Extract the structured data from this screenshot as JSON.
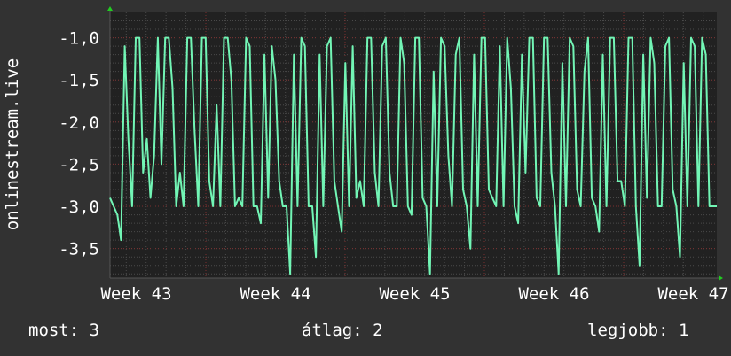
{
  "chart_data": {
    "type": "line",
    "ylabel": "onlinestream.live",
    "xlabel": "",
    "x_tick_labels": [
      "Week 43",
      "Week 44",
      "Week 45",
      "Week 46",
      "Week 47"
    ],
    "y_tick_labels": [
      "-1,0",
      "-1,5",
      "-2,0",
      "-2,5",
      "-3,0",
      "-3,5"
    ],
    "y_ticks": [
      -1.0,
      -1.5,
      -2.0,
      -2.5,
      -3.0,
      -3.5
    ],
    "ylim": [
      -3.85,
      -0.7
    ],
    "grid": true,
    "colors": {
      "line": "#72f5b5",
      "background": "#323232",
      "plot": "#212121",
      "major_grid": "#7a3030",
      "minor_grid": "#4a4a4a",
      "arrow": "#22cc22"
    },
    "series": [
      {
        "values": [
          -2.9,
          -3.0,
          -3.1,
          -3.4,
          -1.1,
          -2.2,
          -3.0,
          -1.0,
          -1.0,
          -2.6,
          -2.2,
          -2.9,
          -2.4,
          -1.0,
          -2.5,
          -1.0,
          -1.0,
          -1.6,
          -3.0,
          -2.6,
          -3.0,
          -1.0,
          -1.0,
          -2.1,
          -3.0,
          -1.0,
          -1.0,
          -2.7,
          -3.0,
          -1.8,
          -3.0,
          -1.0,
          -1.0,
          -1.5,
          -3.0,
          -2.9,
          -3.0,
          -1.0,
          -1.1,
          -3.0,
          -3.0,
          -3.2,
          -1.2,
          -2.9,
          -1.1,
          -1.5,
          -2.7,
          -3.0,
          -3.0,
          -3.8,
          -1.2,
          -3.0,
          -1.0,
          -1.1,
          -3.0,
          -3.0,
          -3.6,
          -1.2,
          -3.0,
          -1.1,
          -1.0,
          -2.7,
          -3.0,
          -3.3,
          -1.3,
          -3.0,
          -1.1,
          -2.9,
          -2.7,
          -3.0,
          -1.0,
          -1.0,
          -2.6,
          -3.0,
          -1.1,
          -1.0,
          -2.6,
          -3.0,
          -3.0,
          -1.0,
          -1.3,
          -3.0,
          -3.1,
          -1.0,
          -1.0,
          -2.9,
          -3.0,
          -3.8,
          -1.4,
          -3.0,
          -1.0,
          -1.1,
          -2.4,
          -3.0,
          -1.2,
          -1.0,
          -2.8,
          -3.0,
          -3.5,
          -1.2,
          -3.0,
          -1.0,
          -1.0,
          -2.8,
          -2.9,
          -3.0,
          -1.1,
          -3.0,
          -1.0,
          -1.6,
          -3.0,
          -3.2,
          -1.2,
          -2.6,
          -1.0,
          -1.0,
          -2.9,
          -3.0,
          -1.0,
          -1.0,
          -2.6,
          -3.0,
          -3.8,
          -1.3,
          -3.0,
          -1.0,
          -1.1,
          -2.8,
          -3.0,
          -1.4,
          -1.0,
          -2.9,
          -3.0,
          -3.3,
          -1.2,
          -3.0,
          -1.0,
          -1.0,
          -2.7,
          -2.7,
          -3.0,
          -1.0,
          -1.0,
          -3.0,
          -3.7,
          -1.2,
          -2.9,
          -1.0,
          -1.3,
          -3.0,
          -3.0,
          -1.1,
          -1.0,
          -2.8,
          -3.0,
          -3.6,
          -1.3,
          -3.0,
          -1.0,
          -1.1,
          -3.0,
          -1.0,
          -1.2,
          -3.0,
          -3.0,
          -3.0
        ]
      }
    ]
  },
  "footer": {
    "current": "most: 3",
    "average": "átlag: 2",
    "best": "legjobb: 1"
  }
}
